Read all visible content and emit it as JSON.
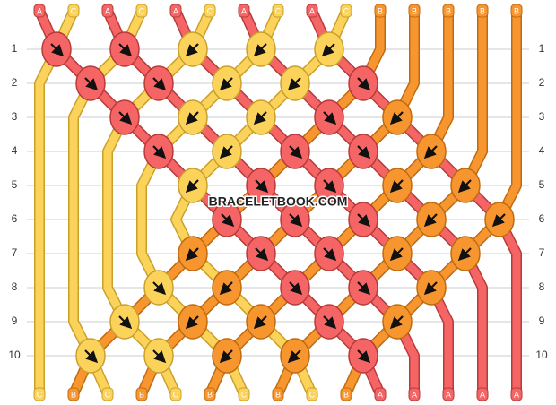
{
  "title": "BRACELETBOOK.COM",
  "colors": {
    "A": "#f56565",
    "B": "#f7962f",
    "C": "#fcd35a"
  },
  "outline": {
    "A": "#b83a3a",
    "B": "#c06a10",
    "C": "#c9a02c"
  },
  "top_labels": [
    "A",
    "C",
    "A",
    "C",
    "A",
    "C",
    "A",
    "C",
    "A",
    "C",
    "B",
    "B",
    "B",
    "B",
    "B"
  ],
  "bottom_labels": [
    "C",
    "B",
    "C",
    "B",
    "C",
    "B",
    "C",
    "B",
    "C",
    "B",
    "A",
    "A",
    "A",
    "A",
    "A"
  ],
  "row_labels": [
    "1",
    "2",
    "3",
    "4",
    "5",
    "6",
    "7",
    "8",
    "9",
    "10"
  ],
  "rows": [
    [
      {
        "color": "A",
        "dir": "right"
      },
      {
        "color": "A",
        "dir": "right"
      },
      {
        "color": "C",
        "dir": "left"
      },
      {
        "color": "C",
        "dir": "left"
      },
      {
        "color": "C",
        "dir": "left"
      }
    ],
    [
      {
        "color": "A",
        "dir": "right"
      },
      {
        "color": "A",
        "dir": "right"
      },
      {
        "color": "C",
        "dir": "left"
      },
      {
        "color": "C",
        "dir": "left"
      },
      {
        "color": "A",
        "dir": "right"
      }
    ],
    [
      {
        "color": "A",
        "dir": "right"
      },
      {
        "color": "C",
        "dir": "left"
      },
      {
        "color": "C",
        "dir": "left"
      },
      {
        "color": "A",
        "dir": "right"
      },
      {
        "color": "B",
        "dir": "left"
      }
    ],
    [
      {
        "color": "A",
        "dir": "right"
      },
      {
        "color": "C",
        "dir": "left"
      },
      {
        "color": "A",
        "dir": "right"
      },
      {
        "color": "A",
        "dir": "right"
      },
      {
        "color": "B",
        "dir": "left"
      }
    ],
    [
      {
        "color": "C",
        "dir": "left"
      },
      {
        "color": "A",
        "dir": "right"
      },
      {
        "color": "A",
        "dir": "right"
      },
      {
        "color": "B",
        "dir": "left"
      },
      {
        "color": "B",
        "dir": "left"
      }
    ],
    [
      {
        "color": "A",
        "dir": "right"
      },
      {
        "color": "A",
        "dir": "right"
      },
      {
        "color": "A",
        "dir": "right"
      },
      {
        "color": "B",
        "dir": "left"
      },
      {
        "color": "B",
        "dir": "left"
      }
    ],
    [
      {
        "color": "B",
        "dir": "left"
      },
      {
        "color": "A",
        "dir": "right"
      },
      {
        "color": "A",
        "dir": "right"
      },
      {
        "color": "B",
        "dir": "left"
      },
      {
        "color": "B",
        "dir": "left"
      }
    ],
    [
      {
        "color": "C",
        "dir": "right"
      },
      {
        "color": "B",
        "dir": "left"
      },
      {
        "color": "A",
        "dir": "right"
      },
      {
        "color": "A",
        "dir": "right"
      },
      {
        "color": "B",
        "dir": "left"
      }
    ],
    [
      {
        "color": "C",
        "dir": "right"
      },
      {
        "color": "B",
        "dir": "left"
      },
      {
        "color": "B",
        "dir": "left"
      },
      {
        "color": "A",
        "dir": "right"
      },
      {
        "color": "B",
        "dir": "left"
      }
    ],
    [
      {
        "color": "C",
        "dir": "right"
      },
      {
        "color": "C",
        "dir": "right"
      },
      {
        "color": "B",
        "dir": "left"
      },
      {
        "color": "B",
        "dir": "left"
      },
      {
        "color": "A",
        "dir": "right"
      }
    ]
  ]
}
